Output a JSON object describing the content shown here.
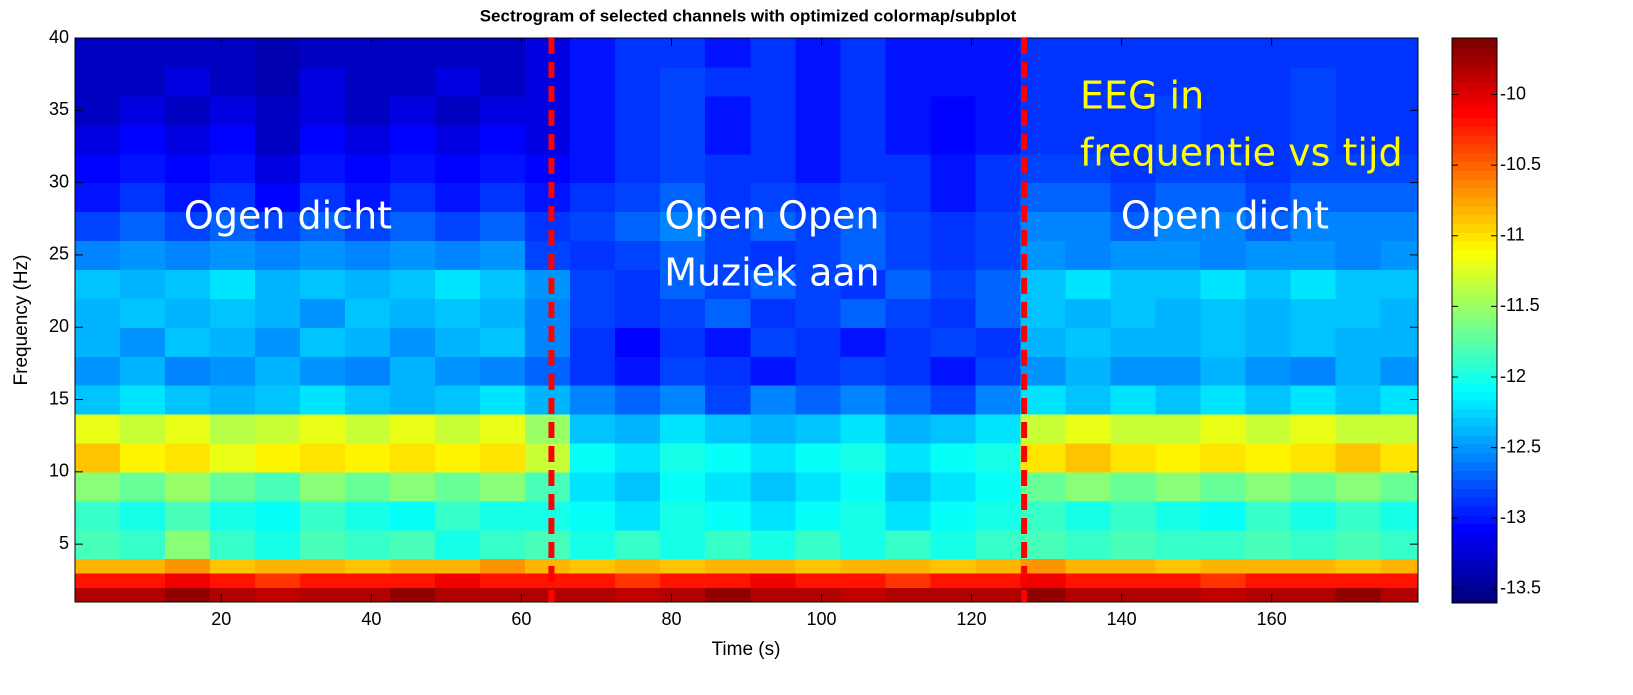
{
  "chart_data": {
    "type": "heatmap",
    "title": "Sectrogram of selected channels with optimized colormap/subplot",
    "x_label": "Time (s)",
    "y_label": "Frequency (Hz)",
    "xlim": [
      0.5,
      179.5
    ],
    "ylim": [
      1,
      40
    ],
    "xticks": [
      20,
      40,
      60,
      80,
      100,
      120,
      140,
      160
    ],
    "yticks": [
      5,
      10,
      15,
      20,
      25,
      30,
      35,
      40
    ],
    "clim": [
      -13.6,
      -9.6
    ],
    "cticks": [
      -10,
      -10.5,
      -11,
      -11.5,
      -12,
      -12.5,
      -13,
      -13.5
    ],
    "colormap": "jet",
    "x_bins": [
      0.5,
      6.5,
      12.5,
      18.5,
      24.5,
      30.5,
      36.5,
      42.5,
      48.5,
      54.5,
      60.5,
      66.5,
      72.5,
      78.5,
      84.5,
      90.5,
      96.5,
      102.5,
      108.5,
      114.5,
      120.5,
      126.5,
      132.5,
      138.5,
      144.5,
      150.5,
      156.5,
      162.5,
      168.5,
      174.5,
      179.5
    ],
    "y_bins": [
      1,
      2,
      3,
      4,
      6,
      8,
      10,
      12,
      14,
      16,
      18,
      20,
      22,
      24,
      26,
      28,
      30,
      32,
      34,
      36,
      38,
      40
    ],
    "values": [
      [
        -9.8,
        -9.8,
        -9.7,
        -9.8,
        -9.9,
        -9.8,
        -9.8,
        -9.7,
        -9.8,
        -9.8,
        -9.8,
        -9.8,
        -9.9,
        -9.8,
        -9.7,
        -9.8,
        -9.8,
        -9.9,
        -9.8,
        -9.8,
        -9.8,
        -9.7,
        -9.8,
        -9.8,
        -9.8,
        -9.9,
        -9.8,
        -9.8,
        -9.7,
        -9.8
      ],
      [
        -10.2,
        -10.2,
        -10.1,
        -10.2,
        -10.3,
        -10.2,
        -10.2,
        -10.2,
        -10.1,
        -10.2,
        -10.2,
        -10.2,
        -10.3,
        -10.2,
        -10.2,
        -10.1,
        -10.2,
        -10.2,
        -10.3,
        -10.2,
        -10.2,
        -10.1,
        -10.2,
        -10.2,
        -10.2,
        -10.3,
        -10.2,
        -10.2,
        -10.2,
        -10.2
      ],
      [
        -10.8,
        -10.8,
        -10.7,
        -10.9,
        -10.8,
        -10.8,
        -10.9,
        -10.8,
        -10.8,
        -10.7,
        -10.8,
        -10.9,
        -10.8,
        -10.9,
        -10.8,
        -10.8,
        -10.9,
        -10.8,
        -10.8,
        -10.9,
        -10.8,
        -10.7,
        -10.8,
        -10.8,
        -10.9,
        -10.8,
        -10.8,
        -10.8,
        -10.9,
        -10.8
      ],
      [
        -11.8,
        -11.9,
        -11.6,
        -11.9,
        -12.0,
        -11.8,
        -11.9,
        -11.8,
        -12.0,
        -11.9,
        -11.8,
        -12.0,
        -11.9,
        -12.0,
        -11.9,
        -12.0,
        -11.9,
        -12.0,
        -11.9,
        -12.0,
        -11.9,
        -11.8,
        -11.9,
        -11.8,
        -11.9,
        -11.9,
        -11.8,
        -11.9,
        -11.8,
        -11.9
      ],
      [
        -11.9,
        -12.0,
        -11.8,
        -12.0,
        -12.1,
        -11.9,
        -12.0,
        -12.1,
        -11.9,
        -12.0,
        -12.0,
        -12.1,
        -12.2,
        -12.0,
        -12.1,
        -12.2,
        -12.1,
        -12.0,
        -12.2,
        -12.1,
        -12.0,
        -11.9,
        -12.0,
        -11.9,
        -12.0,
        -12.1,
        -11.9,
        -12.0,
        -11.9,
        -12.0
      ],
      [
        -11.6,
        -11.7,
        -11.5,
        -11.7,
        -11.8,
        -11.6,
        -11.7,
        -11.6,
        -11.7,
        -11.6,
        -11.8,
        -12.2,
        -12.3,
        -12.1,
        -12.2,
        -12.3,
        -12.2,
        -12.1,
        -12.3,
        -12.2,
        -12.1,
        -11.7,
        -11.6,
        -11.7,
        -11.6,
        -11.7,
        -11.6,
        -11.7,
        -11.6,
        -11.7
      ],
      [
        -10.9,
        -11.1,
        -11.0,
        -11.2,
        -11.1,
        -11.0,
        -11.1,
        -11.0,
        -11.1,
        -11.0,
        -11.3,
        -12.1,
        -12.2,
        -12.0,
        -12.1,
        -12.2,
        -12.1,
        -12.0,
        -12.2,
        -12.1,
        -12.0,
        -11.0,
        -10.9,
        -11.0,
        -11.1,
        -11.0,
        -11.1,
        -11.0,
        -10.9,
        -11.0
      ],
      [
        -11.2,
        -11.3,
        -11.2,
        -11.4,
        -11.3,
        -11.2,
        -11.3,
        -11.2,
        -11.3,
        -11.2,
        -11.5,
        -12.3,
        -12.4,
        -12.2,
        -12.3,
        -12.4,
        -12.3,
        -12.2,
        -12.4,
        -12.3,
        -12.2,
        -11.3,
        -11.2,
        -11.3,
        -11.3,
        -11.2,
        -11.3,
        -11.2,
        -11.3,
        -11.3
      ],
      [
        -12.3,
        -12.2,
        -12.3,
        -12.4,
        -12.3,
        -12.2,
        -12.3,
        -12.4,
        -12.3,
        -12.2,
        -12.4,
        -12.6,
        -12.7,
        -12.6,
        -12.8,
        -12.6,
        -12.7,
        -12.6,
        -12.7,
        -12.8,
        -12.6,
        -12.2,
        -12.3,
        -12.2,
        -12.3,
        -12.2,
        -12.3,
        -12.2,
        -12.3,
        -12.2
      ],
      [
        -12.5,
        -12.4,
        -12.6,
        -12.5,
        -12.4,
        -12.5,
        -12.6,
        -12.4,
        -12.5,
        -12.6,
        -12.7,
        -12.9,
        -13.0,
        -12.8,
        -12.9,
        -13.0,
        -12.9,
        -12.8,
        -12.9,
        -13.0,
        -12.8,
        -12.5,
        -12.4,
        -12.5,
        -12.5,
        -12.4,
        -12.5,
        -12.6,
        -12.4,
        -12.5
      ],
      [
        -12.4,
        -12.5,
        -12.3,
        -12.4,
        -12.5,
        -12.3,
        -12.4,
        -12.5,
        -12.4,
        -12.3,
        -12.6,
        -12.9,
        -13.1,
        -12.9,
        -13.0,
        -12.8,
        -12.9,
        -13.0,
        -12.9,
        -12.8,
        -12.9,
        -12.4,
        -12.3,
        -12.4,
        -12.4,
        -12.3,
        -12.4,
        -12.3,
        -12.4,
        -12.4
      ],
      [
        -12.4,
        -12.3,
        -12.4,
        -12.3,
        -12.4,
        -12.5,
        -12.3,
        -12.4,
        -12.3,
        -12.4,
        -12.6,
        -12.8,
        -12.9,
        -12.8,
        -12.7,
        -12.9,
        -12.8,
        -12.7,
        -12.8,
        -12.9,
        -12.7,
        -12.3,
        -12.4,
        -12.3,
        -12.4,
        -12.3,
        -12.4,
        -12.3,
        -12.3,
        -12.4
      ],
      [
        -12.3,
        -12.4,
        -12.3,
        -12.2,
        -12.4,
        -12.3,
        -12.4,
        -12.3,
        -12.2,
        -12.3,
        -12.5,
        -12.8,
        -12.9,
        -12.7,
        -12.8,
        -12.7,
        -12.8,
        -12.9,
        -12.7,
        -12.8,
        -12.7,
        -12.3,
        -12.2,
        -12.3,
        -12.3,
        -12.2,
        -12.3,
        -12.2,
        -12.3,
        -12.3
      ],
      [
        -12.6,
        -12.5,
        -12.6,
        -12.5,
        -12.6,
        -12.5,
        -12.6,
        -12.5,
        -12.6,
        -12.5,
        -12.8,
        -12.9,
        -12.8,
        -12.7,
        -12.8,
        -12.9,
        -12.8,
        -12.7,
        -12.8,
        -12.9,
        -12.8,
        -12.5,
        -12.6,
        -12.5,
        -12.5,
        -12.6,
        -12.5,
        -12.5,
        -12.6,
        -12.5
      ],
      [
        -12.8,
        -12.7,
        -12.8,
        -12.7,
        -12.8,
        -12.7,
        -12.8,
        -12.7,
        -12.8,
        -12.7,
        -12.9,
        -12.8,
        -12.7,
        -12.6,
        -12.8,
        -12.7,
        -12.8,
        -12.7,
        -12.8,
        -12.9,
        -12.8,
        -12.6,
        -12.6,
        -12.7,
        -12.6,
        -12.6,
        -12.7,
        -12.6,
        -12.6,
        -12.6
      ],
      [
        -13.0,
        -12.9,
        -13.0,
        -12.9,
        -13.1,
        -12.9,
        -13.0,
        -12.9,
        -13.0,
        -12.9,
        -13.0,
        -12.9,
        -12.8,
        -12.7,
        -12.9,
        -12.8,
        -12.9,
        -12.8,
        -12.9,
        -13.0,
        -12.9,
        -12.7,
        -12.7,
        -12.8,
        -12.7,
        -12.7,
        -12.8,
        -12.7,
        -12.7,
        -12.7
      ],
      [
        -13.1,
        -13.0,
        -13.1,
        -13.0,
        -13.2,
        -13.0,
        -13.1,
        -13.0,
        -13.1,
        -13.0,
        -13.1,
        -13.0,
        -12.9,
        -12.8,
        -12.9,
        -12.9,
        -13.0,
        -12.9,
        -12.9,
        -13.0,
        -12.9,
        -12.8,
        -12.8,
        -12.9,
        -12.8,
        -12.8,
        -12.9,
        -12.8,
        -12.8,
        -12.8
      ],
      [
        -13.2,
        -13.1,
        -13.2,
        -13.1,
        -13.3,
        -13.1,
        -13.2,
        -13.1,
        -13.2,
        -13.1,
        -13.2,
        -13.0,
        -12.9,
        -12.8,
        -13.0,
        -12.9,
        -13.0,
        -12.9,
        -13.0,
        -13.1,
        -13.0,
        -12.9,
        -12.9,
        -12.9,
        -12.8,
        -12.9,
        -12.9,
        -12.8,
        -12.9,
        -12.9
      ],
      [
        -13.3,
        -13.2,
        -13.3,
        -13.2,
        -13.3,
        -13.2,
        -13.3,
        -13.2,
        -13.3,
        -13.2,
        -13.2,
        -13.0,
        -12.9,
        -12.8,
        -13.0,
        -12.9,
        -13.0,
        -12.9,
        -13.0,
        -13.1,
        -13.0,
        -12.9,
        -12.9,
        -12.9,
        -12.8,
        -12.9,
        -12.9,
        -12.8,
        -12.9,
        -12.9
      ],
      [
        -13.3,
        -13.3,
        -13.2,
        -13.3,
        -13.4,
        -13.2,
        -13.3,
        -13.3,
        -13.2,
        -13.3,
        -13.2,
        -13.0,
        -12.9,
        -12.8,
        -12.9,
        -12.9,
        -13.0,
        -12.9,
        -13.0,
        -13.0,
        -13.0,
        -12.9,
        -12.9,
        -12.9,
        -12.9,
        -12.9,
        -12.9,
        -12.8,
        -12.9,
        -12.9
      ],
      [
        -13.3,
        -13.3,
        -13.3,
        -13.3,
        -13.4,
        -13.3,
        -13.3,
        -13.3,
        -13.3,
        -13.3,
        -13.2,
        -13.0,
        -12.9,
        -12.9,
        -13.0,
        -12.9,
        -13.0,
        -12.9,
        -13.0,
        -13.0,
        -13.0,
        -12.9,
        -12.9,
        -12.9,
        -12.9,
        -12.9,
        -12.9,
        -12.9,
        -12.9,
        -12.9
      ]
    ],
    "vlines": [
      64,
      127
    ],
    "vline_color": "#ff0000",
    "annotations": [
      {
        "lines": [
          "Ogen dicht"
        ],
        "color": "#ffffff"
      },
      {
        "lines": [
          "Open Open",
          "Muziek aan"
        ],
        "color": "#ffffff"
      },
      {
        "lines": [
          "Open dicht"
        ],
        "color": "#ffffff"
      },
      {
        "lines": [
          "EEG in",
          "frequentie vs tijd"
        ],
        "color": "#ffff00"
      }
    ]
  }
}
